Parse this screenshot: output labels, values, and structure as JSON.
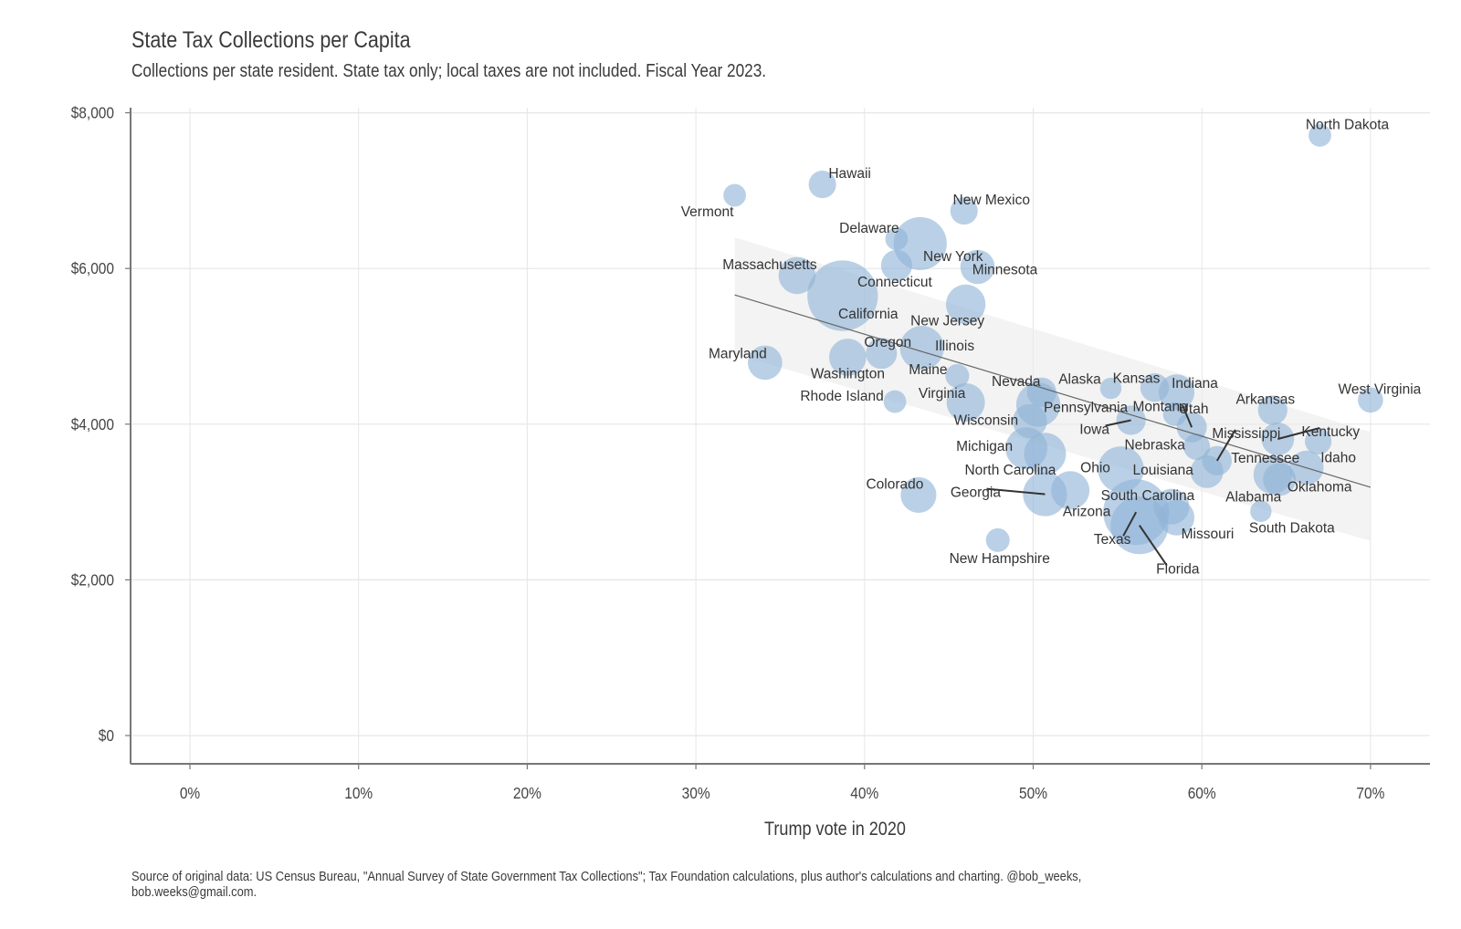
{
  "chart_data": {
    "type": "scatter",
    "title": "State Tax Collections per Capita",
    "subtitle": "Collections per state resident. State tax only; local taxes are not included. Fiscal Year 2023.",
    "xlabel": "Trump vote in 2020",
    "ylabel": "",
    "caption_line1": "Source of original data: US Census Bureau, \"Annual Survey of State Government Tax Collections\"; Tax Foundation calculations, plus author's calculations and charting. @bob_weeks,",
    "caption_line2": "bob.weeks@gmail.com.",
    "xlim": [
      -3.5,
      73.5
    ],
    "ylim": [
      -350,
      8100
    ],
    "x_ticks": [
      0,
      10,
      20,
      30,
      40,
      50,
      60,
      70
    ],
    "x_tick_labels": [
      "0%",
      "10%",
      "20%",
      "30%",
      "40%",
      "50%",
      "60%",
      "70%"
    ],
    "y_ticks": [
      0,
      2000,
      4000,
      6000,
      8000
    ],
    "y_tick_labels": [
      "$0",
      "$2,000",
      "$4,000",
      "$6,000",
      "$8,000"
    ],
    "grid": true,
    "point_color": "#8fb3d6",
    "trend": {
      "x": [
        32.3,
        70
      ],
      "y": [
        5660,
        3190
      ],
      "band_low": [
        4900,
        2500
      ],
      "band_high": [
        6400,
        3900
      ]
    },
    "points": [
      {
        "state": "North Dakota",
        "x": 67.0,
        "y": 7710,
        "size": 1
      },
      {
        "state": "Vermont",
        "x": 32.3,
        "y": 6940,
        "size": 1
      },
      {
        "state": "Hawaii",
        "x": 37.5,
        "y": 7080,
        "size": 2
      },
      {
        "state": "New Mexico",
        "x": 45.9,
        "y": 6740,
        "size": 2
      },
      {
        "state": "Delaware",
        "x": 41.9,
        "y": 6380,
        "size": 1
      },
      {
        "state": "New York",
        "x": 43.3,
        "y": 6320,
        "size": 13
      },
      {
        "state": "Massachusetts",
        "x": 36.0,
        "y": 5910,
        "size": 5
      },
      {
        "state": "Connecticut",
        "x": 41.9,
        "y": 6040,
        "size": 3
      },
      {
        "state": "Minnesota",
        "x": 46.7,
        "y": 6020,
        "size": 4
      },
      {
        "state": "California",
        "x": 38.7,
        "y": 5650,
        "size": 26
      },
      {
        "state": "New Jersey",
        "x": 46.0,
        "y": 5540,
        "size": 6
      },
      {
        "state": "Illinois",
        "x": 43.4,
        "y": 4980,
        "size": 8
      },
      {
        "state": "Oregon",
        "x": 41.0,
        "y": 4910,
        "size": 3
      },
      {
        "state": "Washington",
        "x": 39.0,
        "y": 4860,
        "size": 5
      },
      {
        "state": "Maryland",
        "x": 34.1,
        "y": 4790,
        "size": 4
      },
      {
        "state": "Maine",
        "x": 45.5,
        "y": 4620,
        "size": 1.2
      },
      {
        "state": "Alaska",
        "x": 54.6,
        "y": 4460,
        "size": 0.8
      },
      {
        "state": "Kansas",
        "x": 57.2,
        "y": 4470,
        "size": 2.3
      },
      {
        "state": "Indiana",
        "x": 58.5,
        "y": 4410,
        "size": 4.5
      },
      {
        "state": "Nevada",
        "x": 50.5,
        "y": 4410,
        "size": 2.5
      },
      {
        "state": "Rhode Island",
        "x": 41.8,
        "y": 4290,
        "size": 1
      },
      {
        "state": "Virginia",
        "x": 46.0,
        "y": 4280,
        "size": 5.5
      },
      {
        "state": "Pennsylvania",
        "x": 50.3,
        "y": 4250,
        "size": 8
      },
      {
        "state": "West Virginia",
        "x": 70.0,
        "y": 4310,
        "size": 1.5
      },
      {
        "state": "Arkansas",
        "x": 64.2,
        "y": 4180,
        "size": 2.5
      },
      {
        "state": "Montana",
        "x": 58.4,
        "y": 4130,
        "size": 1.2
      },
      {
        "state": "Wisconsin",
        "x": 49.8,
        "y": 4040,
        "size": 4
      },
      {
        "state": "Iowa",
        "x": 55.8,
        "y": 4050,
        "size": 2.5
      },
      {
        "state": "Utah",
        "x": 59.4,
        "y": 3960,
        "size": 2.7
      },
      {
        "state": "Kentucky",
        "x": 64.5,
        "y": 3810,
        "size": 3.5
      },
      {
        "state": "Idaho",
        "x": 66.9,
        "y": 3780,
        "size": 1.8
      },
      {
        "state": "Nebraska",
        "x": 59.7,
        "y": 3710,
        "size": 1.8
      },
      {
        "state": "Michigan",
        "x": 49.6,
        "y": 3690,
        "size": 7
      },
      {
        "state": "North Carolina",
        "x": 50.7,
        "y": 3620,
        "size": 7
      },
      {
        "state": "Mississippi",
        "x": 60.9,
        "y": 3530,
        "size": 2.5
      },
      {
        "state": "Louisiana",
        "x": 60.3,
        "y": 3390,
        "size": 3.5
      },
      {
        "state": "Tennessee",
        "x": 64.2,
        "y": 3350,
        "size": 5.5
      },
      {
        "state": "Oklahoma",
        "x": 64.6,
        "y": 3290,
        "size": 3.5
      },
      {
        "state": "Alabama",
        "x": 66.2,
        "y": 3440,
        "size": 4
      },
      {
        "state": "Ohio",
        "x": 55.2,
        "y": 3420,
        "size": 9
      },
      {
        "state": "Colorado",
        "x": 43.2,
        "y": 3090,
        "size": 4.5
      },
      {
        "state": "Georgia",
        "x": 50.7,
        "y": 3100,
        "size": 8
      },
      {
        "state": "Arizona",
        "x": 52.2,
        "y": 3150,
        "size": 5.5
      },
      {
        "state": "South Carolina",
        "x": 58.2,
        "y": 2940,
        "size": 4.5
      },
      {
        "state": "Texas",
        "x": 56.1,
        "y": 2870,
        "size": 22
      },
      {
        "state": "Florida",
        "x": 56.3,
        "y": 2700,
        "size": 16
      },
      {
        "state": "Missouri",
        "x": 58.5,
        "y": 2800,
        "size": 4.5
      },
      {
        "state": "South Dakota",
        "x": 63.5,
        "y": 2880,
        "size": 0.8
      },
      {
        "state": "New Hampshire",
        "x": 47.9,
        "y": 2510,
        "size": 1.2
      }
    ]
  }
}
